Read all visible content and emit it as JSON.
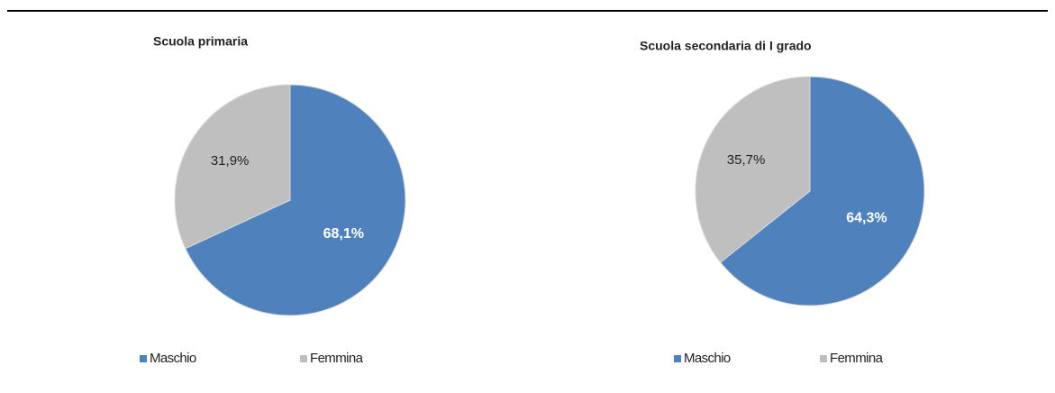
{
  "chart_data": [
    {
      "type": "pie",
      "title": "Scuola primaria",
      "categories": [
        "Maschio",
        "Femmina"
      ],
      "values": [
        68.1,
        31.9
      ],
      "value_labels": [
        "68,1%",
        "31,9%"
      ],
      "colors": [
        "#4f81bd",
        "#bfbfbf"
      ]
    },
    {
      "type": "pie",
      "title": "Scuola secondaria di I grado",
      "categories": [
        "Maschio",
        "Femmina"
      ],
      "values": [
        64.3,
        35.7
      ],
      "value_labels": [
        "64,3%",
        "35,7%"
      ],
      "colors": [
        "#4f81bd",
        "#bfbfbf"
      ]
    }
  ]
}
